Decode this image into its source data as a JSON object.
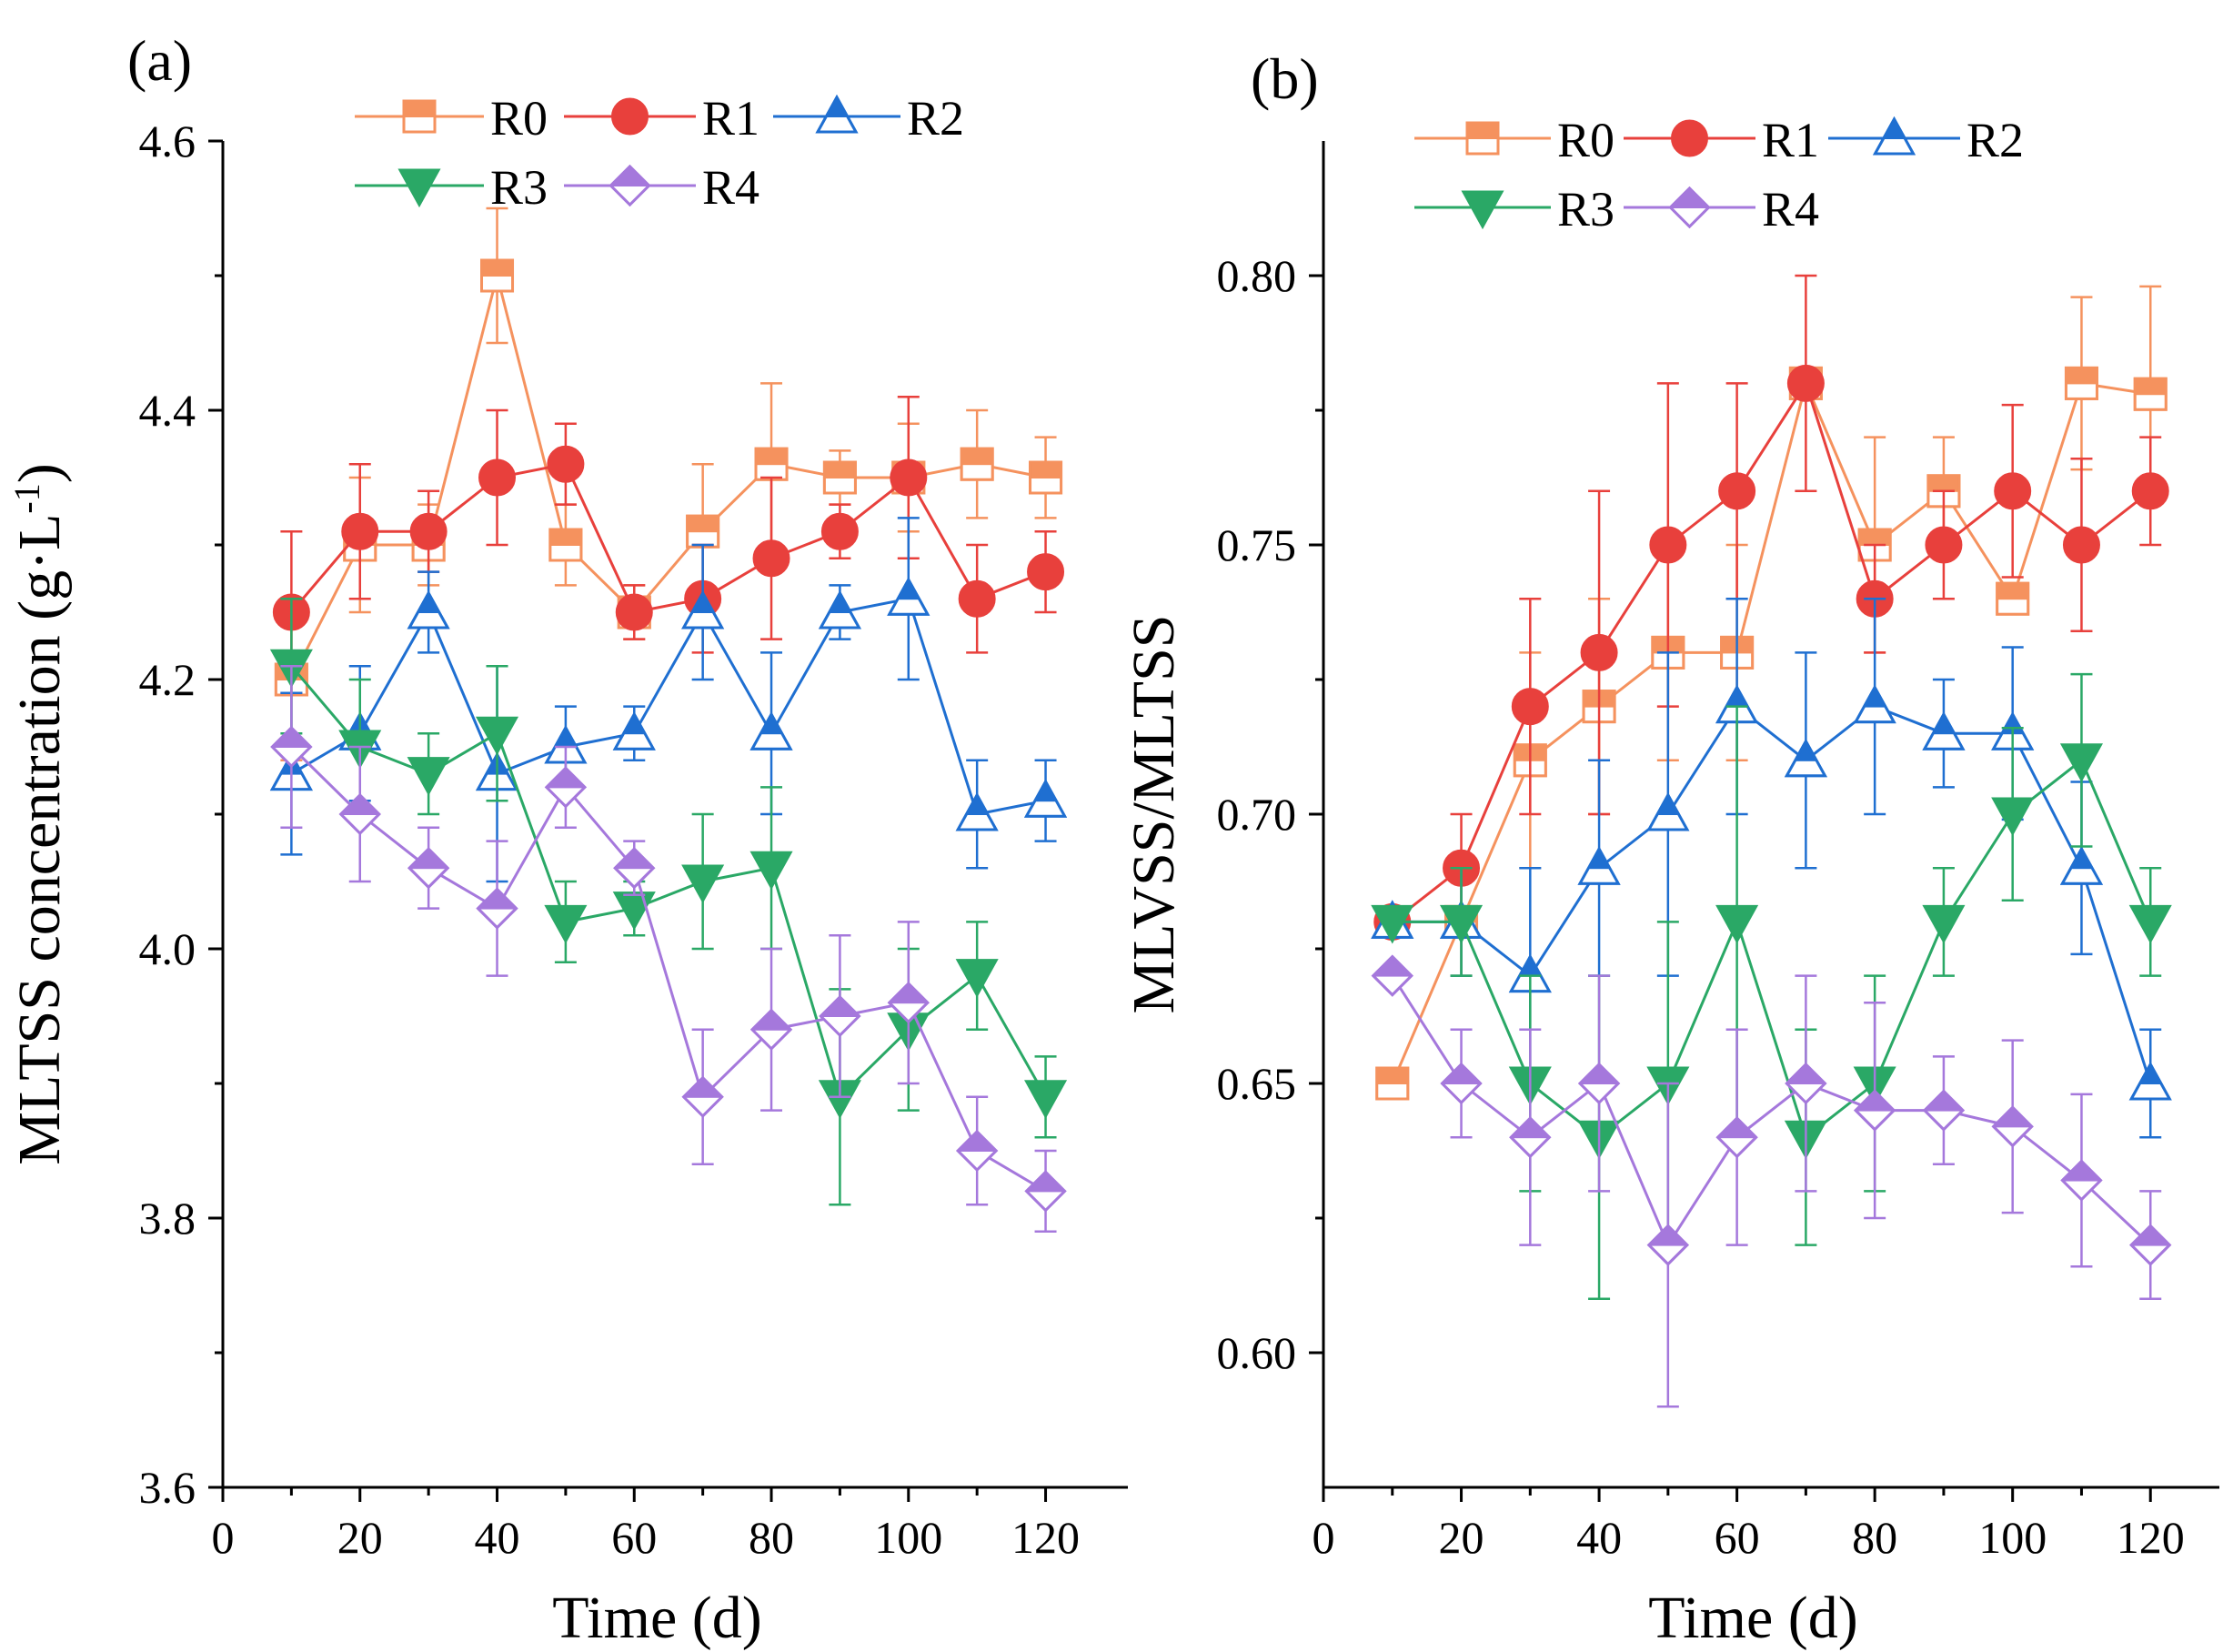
{
  "colors": {
    "R0": "#f5925e",
    "R1": "#e8403c",
    "R2": "#1f6fd1",
    "R3": "#2aa866",
    "R4": "#a578dc"
  },
  "chart_data": [
    {
      "type": "line",
      "panel_label": "(a)",
      "title": "",
      "xlabel": "Time (d)",
      "ylabel": "MLTSS concentration (g·L",
      "ylabel_sup": "-1",
      "ylabel_close": ")",
      "xlim": [
        0,
        132
      ],
      "ylim": [
        3.6,
        4.6
      ],
      "xticks": [
        0,
        20,
        40,
        60,
        80,
        100,
        120
      ],
      "xtick_labels": [
        "0",
        "20",
        "40",
        "60",
        "80",
        "100",
        "120"
      ],
      "yticks": [
        3.6,
        3.8,
        4.0,
        4.2,
        4.4,
        4.6
      ],
      "ytick_labels": [
        "3.6",
        "3.8",
        "4.0",
        "4.2",
        "4.4",
        "4.6"
      ],
      "legend_position": "top",
      "x": [
        10,
        20,
        30,
        40,
        50,
        60,
        70,
        80,
        90,
        100,
        110,
        120
      ],
      "series": [
        {
          "name": "R0",
          "marker": "square",
          "y": [
            4.2,
            4.3,
            4.3,
            4.5,
            4.3,
            4.25,
            4.31,
            4.36,
            4.35,
            4.35,
            4.36,
            4.35
          ],
          "err": [
            0.06,
            0.05,
            0.03,
            0.05,
            0.03,
            0.02,
            0.05,
            0.06,
            0.02,
            0.04,
            0.04,
            0.03
          ]
        },
        {
          "name": "R1",
          "marker": "circle",
          "y": [
            4.25,
            4.31,
            4.31,
            4.35,
            4.36,
            4.25,
            4.26,
            4.29,
            4.31,
            4.35,
            4.26,
            4.28
          ],
          "err": [
            0.06,
            0.05,
            0.03,
            0.05,
            0.03,
            0.02,
            0.04,
            0.06,
            0.02,
            0.06,
            0.04,
            0.03
          ]
        },
        {
          "name": "R2",
          "marker": "triangle-up",
          "y": [
            4.13,
            4.16,
            4.25,
            4.13,
            4.15,
            4.16,
            4.25,
            4.16,
            4.25,
            4.26,
            4.1,
            4.11
          ],
          "err": [
            0.06,
            0.05,
            0.03,
            0.08,
            0.03,
            0.02,
            0.05,
            0.06,
            0.02,
            0.06,
            0.04,
            0.03
          ]
        },
        {
          "name": "R3",
          "marker": "triangle-down",
          "y": [
            4.21,
            4.15,
            4.13,
            4.16,
            4.02,
            4.03,
            4.05,
            4.06,
            3.89,
            3.94,
            3.98,
            3.89
          ],
          "err": [
            0.05,
            0.05,
            0.03,
            0.05,
            0.03,
            0.02,
            0.05,
            0.06,
            0.08,
            0.06,
            0.04,
            0.03
          ]
        },
        {
          "name": "R4",
          "marker": "diamond",
          "y": [
            4.15,
            4.1,
            4.06,
            4.03,
            4.12,
            4.06,
            3.89,
            3.94,
            3.95,
            3.96,
            3.85,
            3.82
          ],
          "err": [
            0.06,
            0.05,
            0.03,
            0.05,
            0.03,
            0.02,
            0.05,
            0.06,
            0.06,
            0.06,
            0.04,
            0.03
          ]
        }
      ]
    },
    {
      "type": "line",
      "panel_label": "(b)",
      "title": "",
      "xlabel": "Time (d)",
      "ylabel": "MLVSS/MLTSS",
      "ylabel_sup": "",
      "ylabel_close": "",
      "xlim": [
        0,
        130
      ],
      "ylim": [
        0.575,
        0.825
      ],
      "xticks": [
        0,
        20,
        40,
        60,
        80,
        100,
        120
      ],
      "xtick_labels": [
        "0",
        "20",
        "40",
        "60",
        "80",
        "100",
        "120"
      ],
      "yticks": [
        0.6,
        0.65,
        0.7,
        0.75,
        0.8
      ],
      "ytick_labels": [
        "0.60",
        "0.65",
        "0.70",
        "0.75",
        "0.80"
      ],
      "legend_position": "top",
      "x": [
        10,
        20,
        30,
        40,
        50,
        60,
        70,
        80,
        90,
        100,
        110,
        120
      ],
      "series": [
        {
          "name": "R0",
          "marker": "square",
          "y": [
            0.65,
            0.68,
            0.71,
            0.72,
            0.73,
            0.73,
            0.78,
            0.75,
            0.76,
            0.74,
            0.78,
            0.778
          ],
          "err": [
            0.0,
            0.01,
            0.02,
            0.02,
            0.02,
            0.02,
            0.0,
            0.02,
            0.01,
            0.0,
            0.016,
            0.02
          ]
        },
        {
          "name": "R1",
          "marker": "circle",
          "y": [
            0.68,
            0.69,
            0.72,
            0.73,
            0.75,
            0.76,
            0.78,
            0.74,
            0.75,
            0.76,
            0.75,
            0.76
          ],
          "err": [
            0.0,
            0.01,
            0.02,
            0.03,
            0.03,
            0.02,
            0.02,
            0.01,
            0.01,
            0.016,
            0.016,
            0.01
          ]
        },
        {
          "name": "R2",
          "marker": "triangle-up",
          "y": [
            0.68,
            0.68,
            0.67,
            0.69,
            0.7,
            0.72,
            0.71,
            0.72,
            0.715,
            0.715,
            0.69,
            0.65
          ],
          "err": [
            0.0,
            0.01,
            0.02,
            0.02,
            0.03,
            0.02,
            0.02,
            0.02,
            0.01,
            0.016,
            0.016,
            0.01
          ]
        },
        {
          "name": "R3",
          "marker": "triangle-down",
          "y": [
            0.68,
            0.68,
            0.65,
            0.64,
            0.65,
            0.68,
            0.64,
            0.65,
            0.68,
            0.7,
            0.71,
            0.68
          ],
          "err": [
            0.0,
            0.01,
            0.02,
            0.03,
            0.03,
            0.04,
            0.02,
            0.02,
            0.01,
            0.016,
            0.016,
            0.01
          ]
        },
        {
          "name": "R4",
          "marker": "diamond",
          "y": [
            0.67,
            0.65,
            0.64,
            0.65,
            0.62,
            0.64,
            0.65,
            0.645,
            0.645,
            0.642,
            0.632,
            0.62
          ],
          "err": [
            0.0,
            0.01,
            0.02,
            0.02,
            0.03,
            0.02,
            0.02,
            0.02,
            0.01,
            0.016,
            0.016,
            0.01
          ]
        }
      ]
    }
  ]
}
